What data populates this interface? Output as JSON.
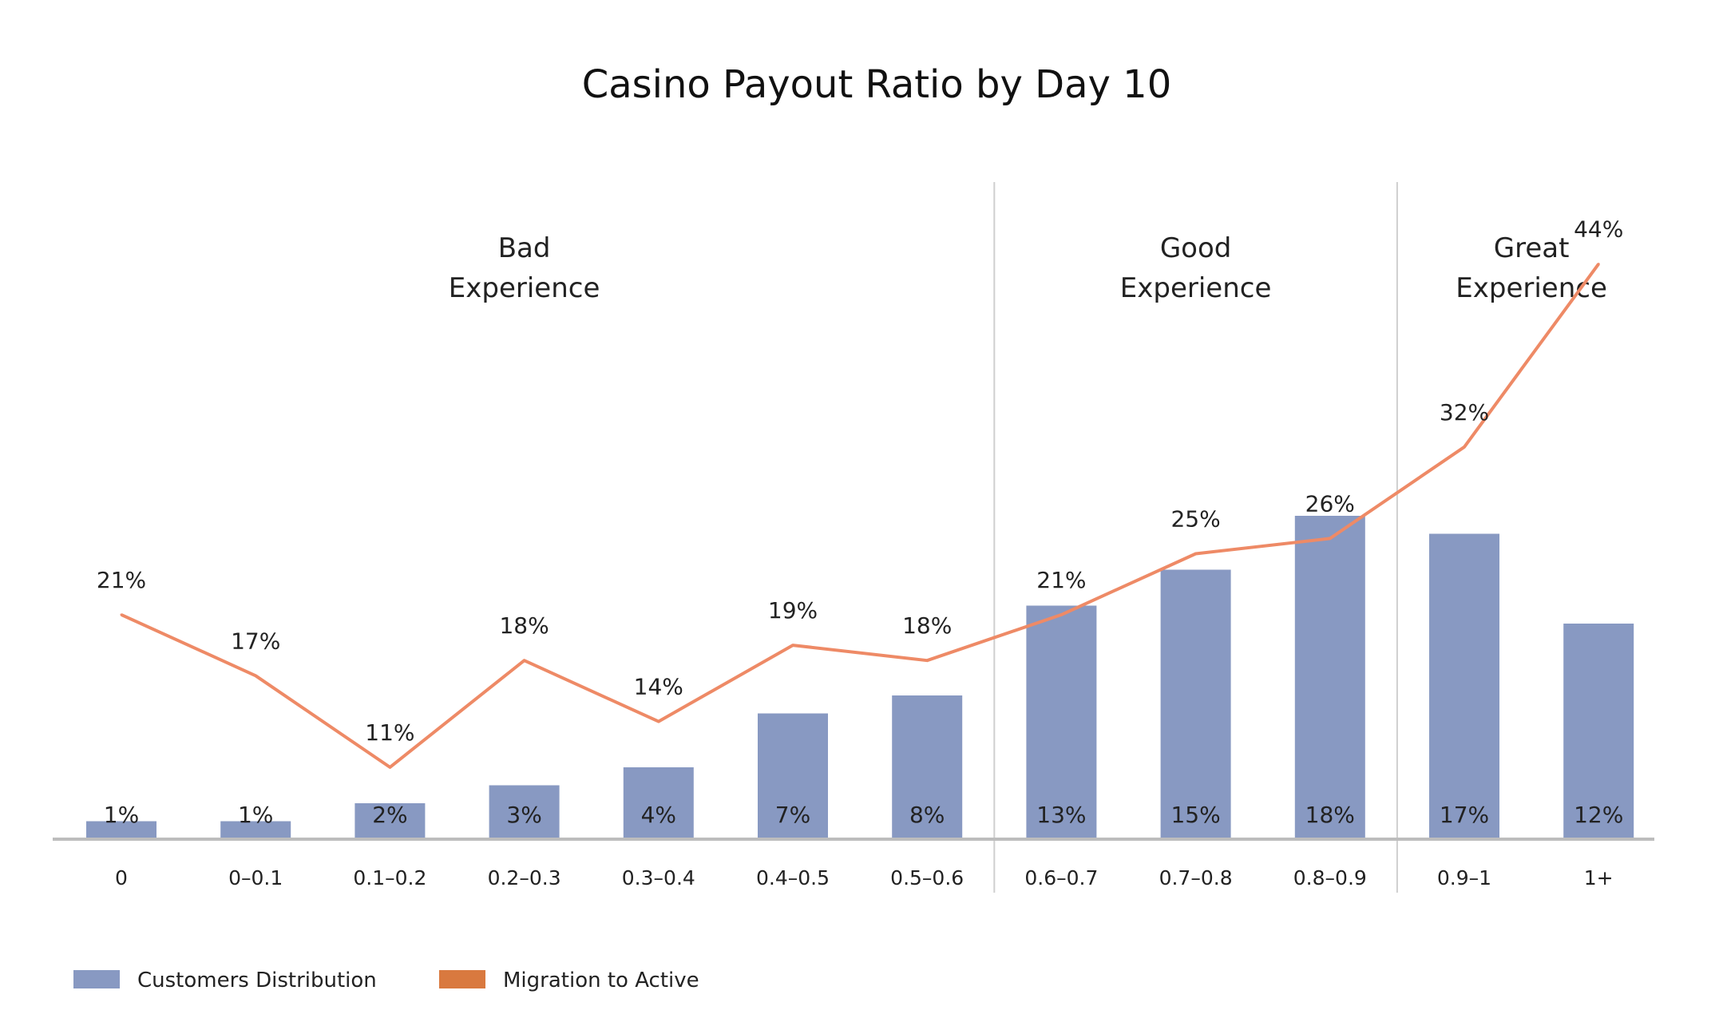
{
  "chart_data": {
    "type": "bar",
    "title": "Casino Payout Ratio by Day 10",
    "categories": [
      "0",
      "0–0.1",
      "0.1–0.2",
      "0.2–0.3",
      "0.3–0.4",
      "0.4–0.5",
      "0.5–0.6",
      "0.6–0.7",
      "0.7–0.8",
      "0.8–0.9",
      "0.9–1",
      "1+"
    ],
    "series": [
      {
        "name": "Customers Distribution",
        "kind": "bar",
        "values": [
          1,
          1,
          2,
          3,
          4,
          7,
          8,
          13,
          15,
          18,
          17,
          12
        ],
        "labels": [
          "1%",
          "1%",
          "2%",
          "3%",
          "4%",
          "7%",
          "8%",
          "13%",
          "15%",
          "18%",
          "17%",
          "12%"
        ],
        "color": "#8899c2"
      },
      {
        "name": "Migration to Active",
        "kind": "line",
        "values": [
          21,
          17,
          11,
          18,
          14,
          19,
          18,
          21,
          25,
          26,
          32,
          44
        ],
        "labels": [
          "21%",
          "17%",
          "11%",
          "18%",
          "14%",
          "19%",
          "18%",
          "21%",
          "25%",
          "26%",
          "32%",
          "44%"
        ],
        "color": "#ee8a66",
        "legend_color": "#d9793f"
      }
    ],
    "regions": [
      {
        "lines": [
          "Bad",
          "Experience"
        ],
        "start": 0,
        "end": 6
      },
      {
        "lines": [
          "Good",
          "Experience"
        ],
        "start": 7,
        "end": 9
      },
      {
        "lines": [
          "Great",
          "Experience"
        ],
        "start": 10,
        "end": 11
      }
    ],
    "xlabel": "",
    "ylabel": "",
    "grid": false,
    "legend_position": "bottom-left",
    "axis_color": "#bdbdbd",
    "divider_color": "#cfcfcf"
  }
}
